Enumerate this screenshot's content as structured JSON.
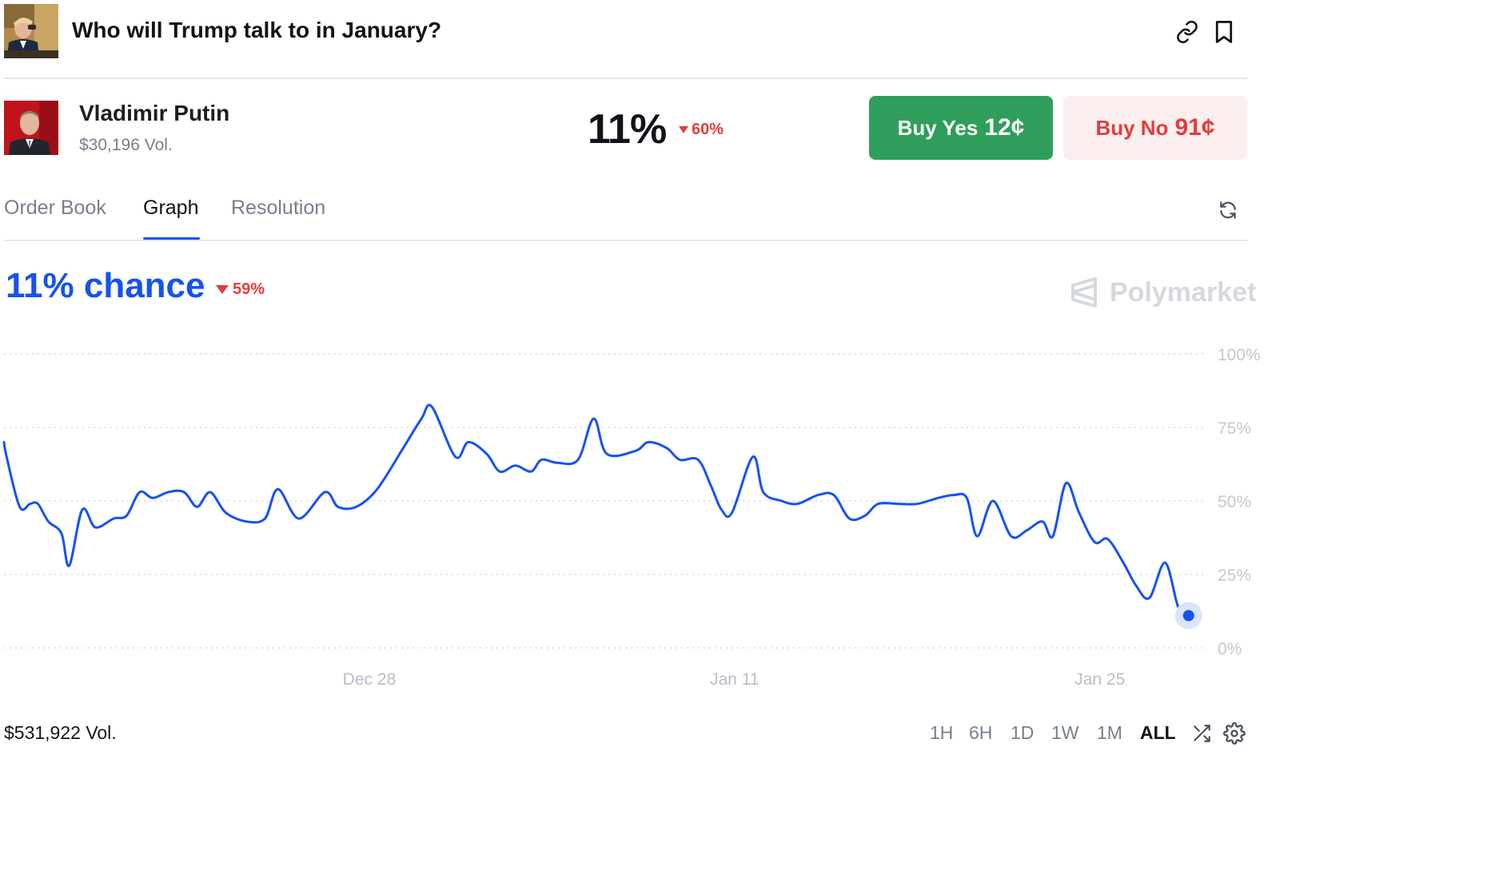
{
  "header": {
    "title": "Who will Trump talk to in January?",
    "thumb_icon": "trump-photo",
    "actions": [
      "link-icon",
      "bookmark-icon"
    ]
  },
  "market": {
    "name": "Vladimir Putin",
    "volume": "$30,196 Vol.",
    "probability": "11%",
    "change": "60%",
    "change_direction": "down",
    "buy_yes_label": "Buy Yes",
    "buy_yes_price": "12¢",
    "buy_no_label": "Buy No",
    "buy_no_price": "91¢"
  },
  "tabs": [
    {
      "label": "Order Book",
      "active": false
    },
    {
      "label": "Graph",
      "active": true
    },
    {
      "label": "Resolution",
      "active": false
    }
  ],
  "chart_header": {
    "chance": "11% chance",
    "change": "59%",
    "watermark": "Polymarket"
  },
  "chart_data": {
    "type": "line",
    "x_tick_labels": [
      "Dec 28",
      "Jan 11",
      "Jan 25"
    ],
    "y_tick_labels": [
      "100%",
      "75%",
      "50%",
      "25%",
      "0%"
    ],
    "ylim": [
      0,
      100
    ],
    "grid": true,
    "line_color": "#1652f0",
    "x_range_days": [
      0,
      45.5
    ],
    "x_ticks_days": [
      14,
      28,
      42
    ],
    "series": [
      {
        "values_pct": [
          [
            0.0,
            70
          ],
          [
            0.1,
            65
          ],
          [
            0.6,
            48
          ],
          [
            1.0,
            49
          ],
          [
            1.3,
            49
          ],
          [
            1.7,
            43
          ],
          [
            2.2,
            39
          ],
          [
            2.5,
            28
          ],
          [
            3.0,
            47
          ],
          [
            3.5,
            41
          ],
          [
            4.2,
            44
          ],
          [
            4.7,
            45
          ],
          [
            5.2,
            53
          ],
          [
            5.7,
            51
          ],
          [
            6.3,
            53
          ],
          [
            6.9,
            53
          ],
          [
            7.4,
            48
          ],
          [
            7.9,
            53
          ],
          [
            8.5,
            46
          ],
          [
            9.3,
            43
          ],
          [
            10.0,
            44
          ],
          [
            10.5,
            54
          ],
          [
            11.3,
            44
          ],
          [
            12.3,
            53
          ],
          [
            12.8,
            48
          ],
          [
            13.5,
            48
          ],
          [
            14.3,
            54
          ],
          [
            15.3,
            68
          ],
          [
            16.0,
            78
          ],
          [
            16.4,
            82
          ],
          [
            17.3,
            65
          ],
          [
            17.8,
            70
          ],
          [
            18.5,
            66
          ],
          [
            19.0,
            60
          ],
          [
            19.6,
            62
          ],
          [
            20.2,
            60
          ],
          [
            20.6,
            64
          ],
          [
            21.2,
            63
          ],
          [
            22.0,
            64
          ],
          [
            22.6,
            78
          ],
          [
            23.1,
            66
          ],
          [
            24.2,
            67
          ],
          [
            24.7,
            70
          ],
          [
            25.4,
            68
          ],
          [
            25.9,
            64
          ],
          [
            26.6,
            64
          ],
          [
            27.1,
            55
          ],
          [
            27.5,
            47
          ],
          [
            27.9,
            46
          ],
          [
            28.7,
            65
          ],
          [
            29.1,
            53
          ],
          [
            29.8,
            50
          ],
          [
            30.4,
            49
          ],
          [
            31.2,
            52
          ],
          [
            31.8,
            52
          ],
          [
            32.4,
            44
          ],
          [
            33.0,
            45
          ],
          [
            33.5,
            49
          ],
          [
            34.3,
            49
          ],
          [
            35.0,
            49
          ],
          [
            35.8,
            51
          ],
          [
            36.4,
            52
          ],
          [
            36.9,
            51
          ],
          [
            37.3,
            38
          ],
          [
            37.9,
            50
          ],
          [
            38.6,
            38
          ],
          [
            39.2,
            40
          ],
          [
            39.8,
            43
          ],
          [
            40.2,
            38
          ],
          [
            40.7,
            56
          ],
          [
            41.2,
            46
          ],
          [
            41.8,
            36
          ],
          [
            42.3,
            37
          ],
          [
            42.9,
            29
          ],
          [
            43.4,
            21
          ],
          [
            43.9,
            17
          ],
          [
            44.5,
            29
          ],
          [
            45.0,
            14
          ],
          [
            45.4,
            11
          ]
        ]
      }
    ]
  },
  "footer": {
    "volume": "$531,922 Vol.",
    "ranges": [
      {
        "label": "1H",
        "active": false
      },
      {
        "label": "6H",
        "active": false
      },
      {
        "label": "1D",
        "active": false
      },
      {
        "label": "1W",
        "active": false
      },
      {
        "label": "1M",
        "active": false
      },
      {
        "label": "ALL",
        "active": true
      }
    ],
    "icons": [
      "shuffle-icon",
      "settings-icon"
    ]
  },
  "colors": {
    "accent": "#1652f0",
    "yes": "#2f9e5b",
    "no_bg": "#fbeeee",
    "down": "#e23d3d"
  }
}
